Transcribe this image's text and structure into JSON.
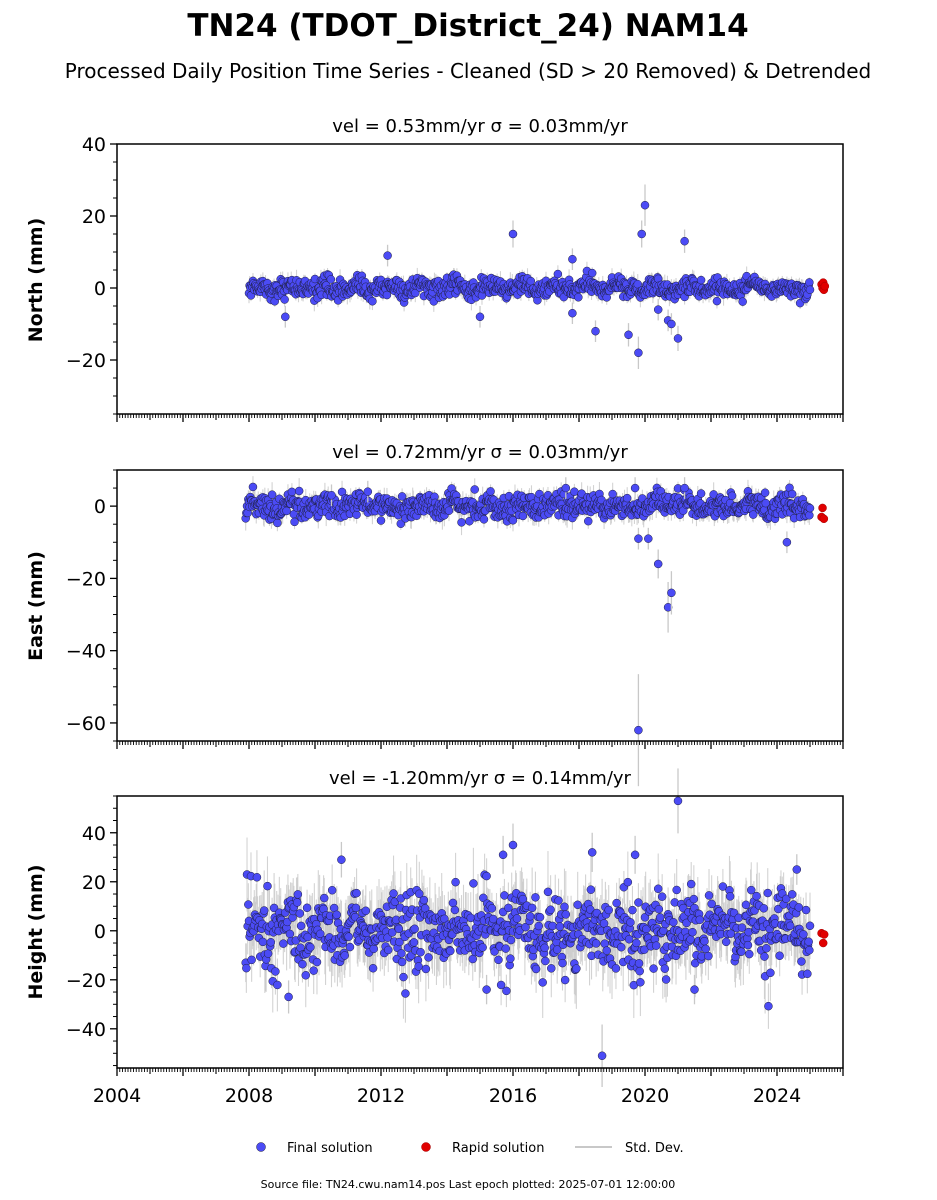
{
  "title": "TN24 (TDOT_District_24) NAM14",
  "subtitle": "Processed Daily Position Time Series - Cleaned (SD > 20 Removed) & Detrended",
  "colors": {
    "final": "#4b4bf5",
    "final_edge": "#1e1e3c",
    "rapid": "#e00000",
    "stddev": "#c8c8c8"
  },
  "legend": {
    "final_label": "Final solution",
    "rapid_label": "Rapid solution",
    "stddev_label": "Std. Dev."
  },
  "source": "Source file: TN24.cwu.nam14.pos  Last epoch plotted: 2025-07-01 12:00:00",
  "chart_data": [
    {
      "type": "scatter",
      "title": "vel = 0.53mm/yr   σ = 0.03mm/yr",
      "ylabel": "North (mm)",
      "xlim": [
        2004,
        2026
      ],
      "ylim": [
        -35,
        40
      ],
      "yticks": [
        -20,
        0,
        20,
        40
      ],
      "xticks": [
        2004,
        2008,
        2012,
        2016,
        2020,
        2024
      ],
      "data_start": 2008.0,
      "data_end": 2025.0,
      "scatter_sd": 1.3,
      "scatter_sd_range": [
        1.0,
        1.6
      ],
      "outliers": [
        {
          "x": 2009.1,
          "y": -8
        },
        {
          "x": 2012.2,
          "y": 9
        },
        {
          "x": 2015.0,
          "y": -8
        },
        {
          "x": 2016.0,
          "y": 15
        },
        {
          "x": 2017.8,
          "y": 8
        },
        {
          "x": 2017.8,
          "y": -7
        },
        {
          "x": 2018.5,
          "y": -12
        },
        {
          "x": 2019.5,
          "y": -13
        },
        {
          "x": 2019.8,
          "y": -18
        },
        {
          "x": 2019.9,
          "y": 15
        },
        {
          "x": 2020.0,
          "y": 23
        },
        {
          "x": 2020.4,
          "y": -6
        },
        {
          "x": 2020.7,
          "y": -9
        },
        {
          "x": 2020.8,
          "y": -10
        },
        {
          "x": 2021.0,
          "y": -14
        },
        {
          "x": 2021.2,
          "y": 13
        }
      ],
      "rapid": [
        {
          "x": 2025.35,
          "y": 1
        },
        {
          "x": 2025.38,
          "y": 0
        },
        {
          "x": 2025.4,
          "y": 1.5
        },
        {
          "x": 2025.42,
          "y": -0.5
        },
        {
          "x": 2025.45,
          "y": 0.5
        }
      ]
    },
    {
      "type": "scatter",
      "title": "vel = 0.72mm/yr   σ = 0.03mm/yr",
      "ylabel": "East (mm)",
      "xlim": [
        2004,
        2026
      ],
      "ylim": [
        -65,
        10
      ],
      "yticks": [
        -60,
        -40,
        -20,
        0
      ],
      "xticks": [
        2004,
        2008,
        2012,
        2016,
        2020,
        2024
      ],
      "data_start": 2007.9,
      "data_end": 2025.0,
      "scatter_sd": 1.6,
      "scatter_sd_range": [
        1.3,
        2.0
      ],
      "outliers": [
        {
          "x": 2010.5,
          "y": 3
        },
        {
          "x": 2011.6,
          "y": 4
        },
        {
          "x": 2017.6,
          "y": 5
        },
        {
          "x": 2019.7,
          "y": 5
        },
        {
          "x": 2019.8,
          "y": -9
        },
        {
          "x": 2020.1,
          "y": -9
        },
        {
          "x": 2020.4,
          "y": -16
        },
        {
          "x": 2020.7,
          "y": -28
        },
        {
          "x": 2020.8,
          "y": -24
        },
        {
          "x": 2021.2,
          "y": 5
        },
        {
          "x": 2019.8,
          "y": -62
        },
        {
          "x": 2024.3,
          "y": -10
        }
      ],
      "rapid": [
        {
          "x": 2025.35,
          "y": -3
        },
        {
          "x": 2025.38,
          "y": -0.5
        },
        {
          "x": 2025.42,
          "y": -3.5
        }
      ]
    },
    {
      "type": "scatter",
      "title": "vel = -1.20mm/yr   σ = 0.14mm/yr",
      "ylabel": "Height (mm)",
      "xlim": [
        2004,
        2026
      ],
      "ylim": [
        -56,
        55
      ],
      "yticks": [
        -40,
        -20,
        0,
        20,
        40
      ],
      "xticks": [
        2004,
        2008,
        2012,
        2016,
        2020,
        2024
      ],
      "data_start": 2007.9,
      "data_end": 2025.0,
      "scatter_sd": 7.5,
      "scatter_sd_range": [
        6.0,
        9.0
      ],
      "outliers": [
        {
          "x": 2009.2,
          "y": -27
        },
        {
          "x": 2010.8,
          "y": 29
        },
        {
          "x": 2015.2,
          "y": -24
        },
        {
          "x": 2015.7,
          "y": 31
        },
        {
          "x": 2016.0,
          "y": 35
        },
        {
          "x": 2018.4,
          "y": 32
        },
        {
          "x": 2018.7,
          "y": -51
        },
        {
          "x": 2019.7,
          "y": 31
        },
        {
          "x": 2021.0,
          "y": 53
        },
        {
          "x": 2021.5,
          "y": -24
        },
        {
          "x": 2024.6,
          "y": 25
        }
      ],
      "rapid": [
        {
          "x": 2025.35,
          "y": -1
        },
        {
          "x": 2025.4,
          "y": -5
        },
        {
          "x": 2025.43,
          "y": -1.5
        }
      ]
    }
  ]
}
